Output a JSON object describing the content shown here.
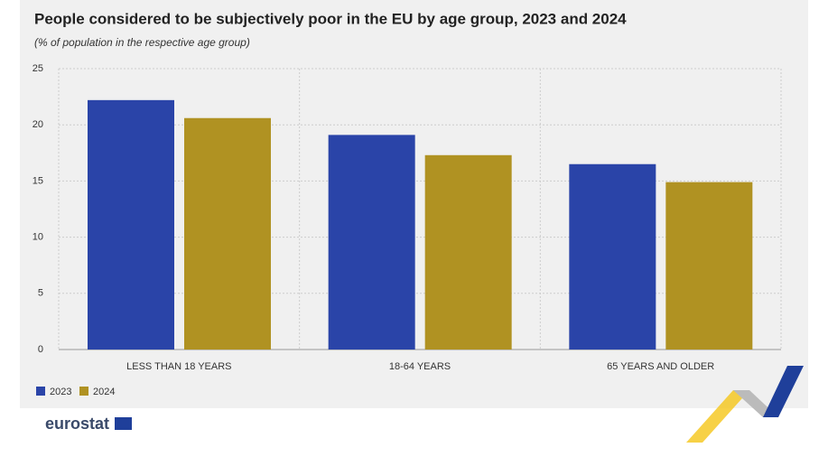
{
  "chart_data": {
    "type": "bar",
    "title": "People considered to be subjectively poor in the EU by age group, 2023 and 2024",
    "subtitle": "(% of population in the respective age group)",
    "categories": [
      "LESS THAN 18 YEARS",
      "18-64 YEARS",
      "65 YEARS AND OLDER"
    ],
    "series": [
      {
        "name": "2023",
        "color": "#2a44a8",
        "values": [
          22.2,
          19.1,
          16.5
        ]
      },
      {
        "name": "2024",
        "color": "#b09222",
        "values": [
          20.6,
          17.3,
          14.9
        ]
      }
    ],
    "ylim": [
      0,
      25
    ],
    "yticks": [
      0,
      5,
      10,
      15,
      20,
      25
    ],
    "grid": true,
    "legend": "bottom-left"
  },
  "footer": {
    "logo": "eurostat"
  }
}
